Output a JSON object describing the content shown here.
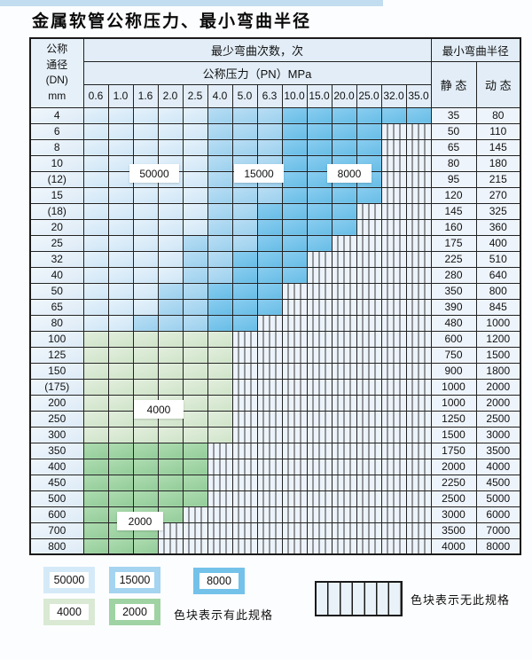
{
  "page": {
    "title": "金属软管公称压力、最小弯曲半径"
  },
  "table": {
    "corner_header": [
      "公称",
      "通径",
      "(DN)",
      "mm"
    ],
    "bend_cycles_header": "最少弯曲次数，次",
    "pressure_header": "公称压力（PN）MPa",
    "pressure_columns": [
      "0.6",
      "1.0",
      "1.6",
      "2.0",
      "2.5",
      "4.0",
      "5.0",
      "6.3",
      "10.0",
      "15.0",
      "20.0",
      "25.0",
      "32.0",
      "35.0"
    ],
    "radius_header": "最小弯曲半径",
    "static_header": "静 态",
    "dynamic_header": "动 态",
    "zone_colors": {
      "A": "#d5eaf8",
      "B": "#a4d4f0",
      "C": "#74c2e9",
      "D": "#d9e9d3",
      "E": "#a0d3a3"
    },
    "zone_values": {
      "A": "50000",
      "B": "15000",
      "C": "8000",
      "D": "4000",
      "E": "2000",
      "N": "none"
    },
    "rows": [
      {
        "dn": "4",
        "cells": "AAAAABBBCCCCCC",
        "static": "35",
        "dynamic": "80"
      },
      {
        "dn": "6",
        "cells": "AAAAABBBCCCCNN",
        "static": "50",
        "dynamic": "110"
      },
      {
        "dn": "8",
        "cells": "AAAAABBBCCCCNN",
        "static": "65",
        "dynamic": "145"
      },
      {
        "dn": "10",
        "cells": "AAAAABBBCCCCNN",
        "static": "80",
        "dynamic": "180"
      },
      {
        "dn": "(12)",
        "cells": "AAAAABBBCCCCNN",
        "static": "95",
        "dynamic": "215"
      },
      {
        "dn": "15",
        "cells": "AAAAABBBCCCCNN",
        "static": "120",
        "dynamic": "270"
      },
      {
        "dn": "(18)",
        "cells": "AAAAABBCCCCNNN",
        "static": "145",
        "dynamic": "325"
      },
      {
        "dn": "20",
        "cells": "AAAAABBCCCCNNN",
        "static": "160",
        "dynamic": "360"
      },
      {
        "dn": "25",
        "cells": "AAAABBBCCCNNNN",
        "static": "175",
        "dynamic": "400"
      },
      {
        "dn": "32",
        "cells": "AAAABBCCCNNNNN",
        "static": "225",
        "dynamic": "510"
      },
      {
        "dn": "40",
        "cells": "AAAABBCCCNNNNN",
        "static": "280",
        "dynamic": "640"
      },
      {
        "dn": "50",
        "cells": "AAABBCCCNNNNNN",
        "static": "350",
        "dynamic": "800"
      },
      {
        "dn": "65",
        "cells": "AAABBCCCNNNNNN",
        "static": "390",
        "dynamic": "845"
      },
      {
        "dn": "80",
        "cells": "AABBBCCNNNNNNN",
        "static": "480",
        "dynamic": "1000"
      },
      {
        "dn": "100",
        "cells": "DDDDDDNNNNNNNN",
        "static": "600",
        "dynamic": "1200"
      },
      {
        "dn": "125",
        "cells": "DDDDDDNNNNNNNN",
        "static": "750",
        "dynamic": "1500"
      },
      {
        "dn": "150",
        "cells": "DDDDDDNNNNNNNN",
        "static": "900",
        "dynamic": "1800"
      },
      {
        "dn": "(175)",
        "cells": "DDDDDDNNNNNNNN",
        "static": "1000",
        "dynamic": "2000"
      },
      {
        "dn": "200",
        "cells": "DDDDDDNNNNNNNN",
        "static": "1000",
        "dynamic": "2000"
      },
      {
        "dn": "250",
        "cells": "DDDDDDNNNNNNNN",
        "static": "1250",
        "dynamic": "2500"
      },
      {
        "dn": "300",
        "cells": "DDDDDDNNNNNNNN",
        "static": "1500",
        "dynamic": "3000"
      },
      {
        "dn": "350",
        "cells": "EEEEENNNNNNNNN",
        "static": "1750",
        "dynamic": "3500"
      },
      {
        "dn": "400",
        "cells": "EEEEENNNNNNNNN",
        "static": "2000",
        "dynamic": "4000"
      },
      {
        "dn": "450",
        "cells": "EEEEENNNNNNNNN",
        "static": "2250",
        "dynamic": "4500"
      },
      {
        "dn": "500",
        "cells": "EEEEENNNNNNNNN",
        "static": "2500",
        "dynamic": "5000"
      },
      {
        "dn": "600",
        "cells": "EEEENNNNNNNNNN",
        "static": "3000",
        "dynamic": "6000"
      },
      {
        "dn": "700",
        "cells": "EEENNNNNNNNNNN",
        "static": "3500",
        "dynamic": "7000"
      },
      {
        "dn": "800",
        "cells": "EEENNNNNNNNNNN",
        "static": "4000",
        "dynamic": "8000"
      }
    ],
    "zone_labels": [
      {
        "text": "50000"
      },
      {
        "text": "15000"
      },
      {
        "text": "8000"
      },
      {
        "text": "4000"
      },
      {
        "text": "2000"
      }
    ]
  },
  "legend": {
    "items": [
      {
        "label": "50000",
        "zone": "A"
      },
      {
        "label": "15000",
        "zone": "B"
      },
      {
        "label": "8000",
        "zone": "C"
      },
      {
        "label": "4000",
        "zone": "D"
      },
      {
        "label": "2000",
        "zone": "E"
      }
    ],
    "has_note": "色块表示有此规格",
    "none_note": "色块表示无此规格"
  }
}
